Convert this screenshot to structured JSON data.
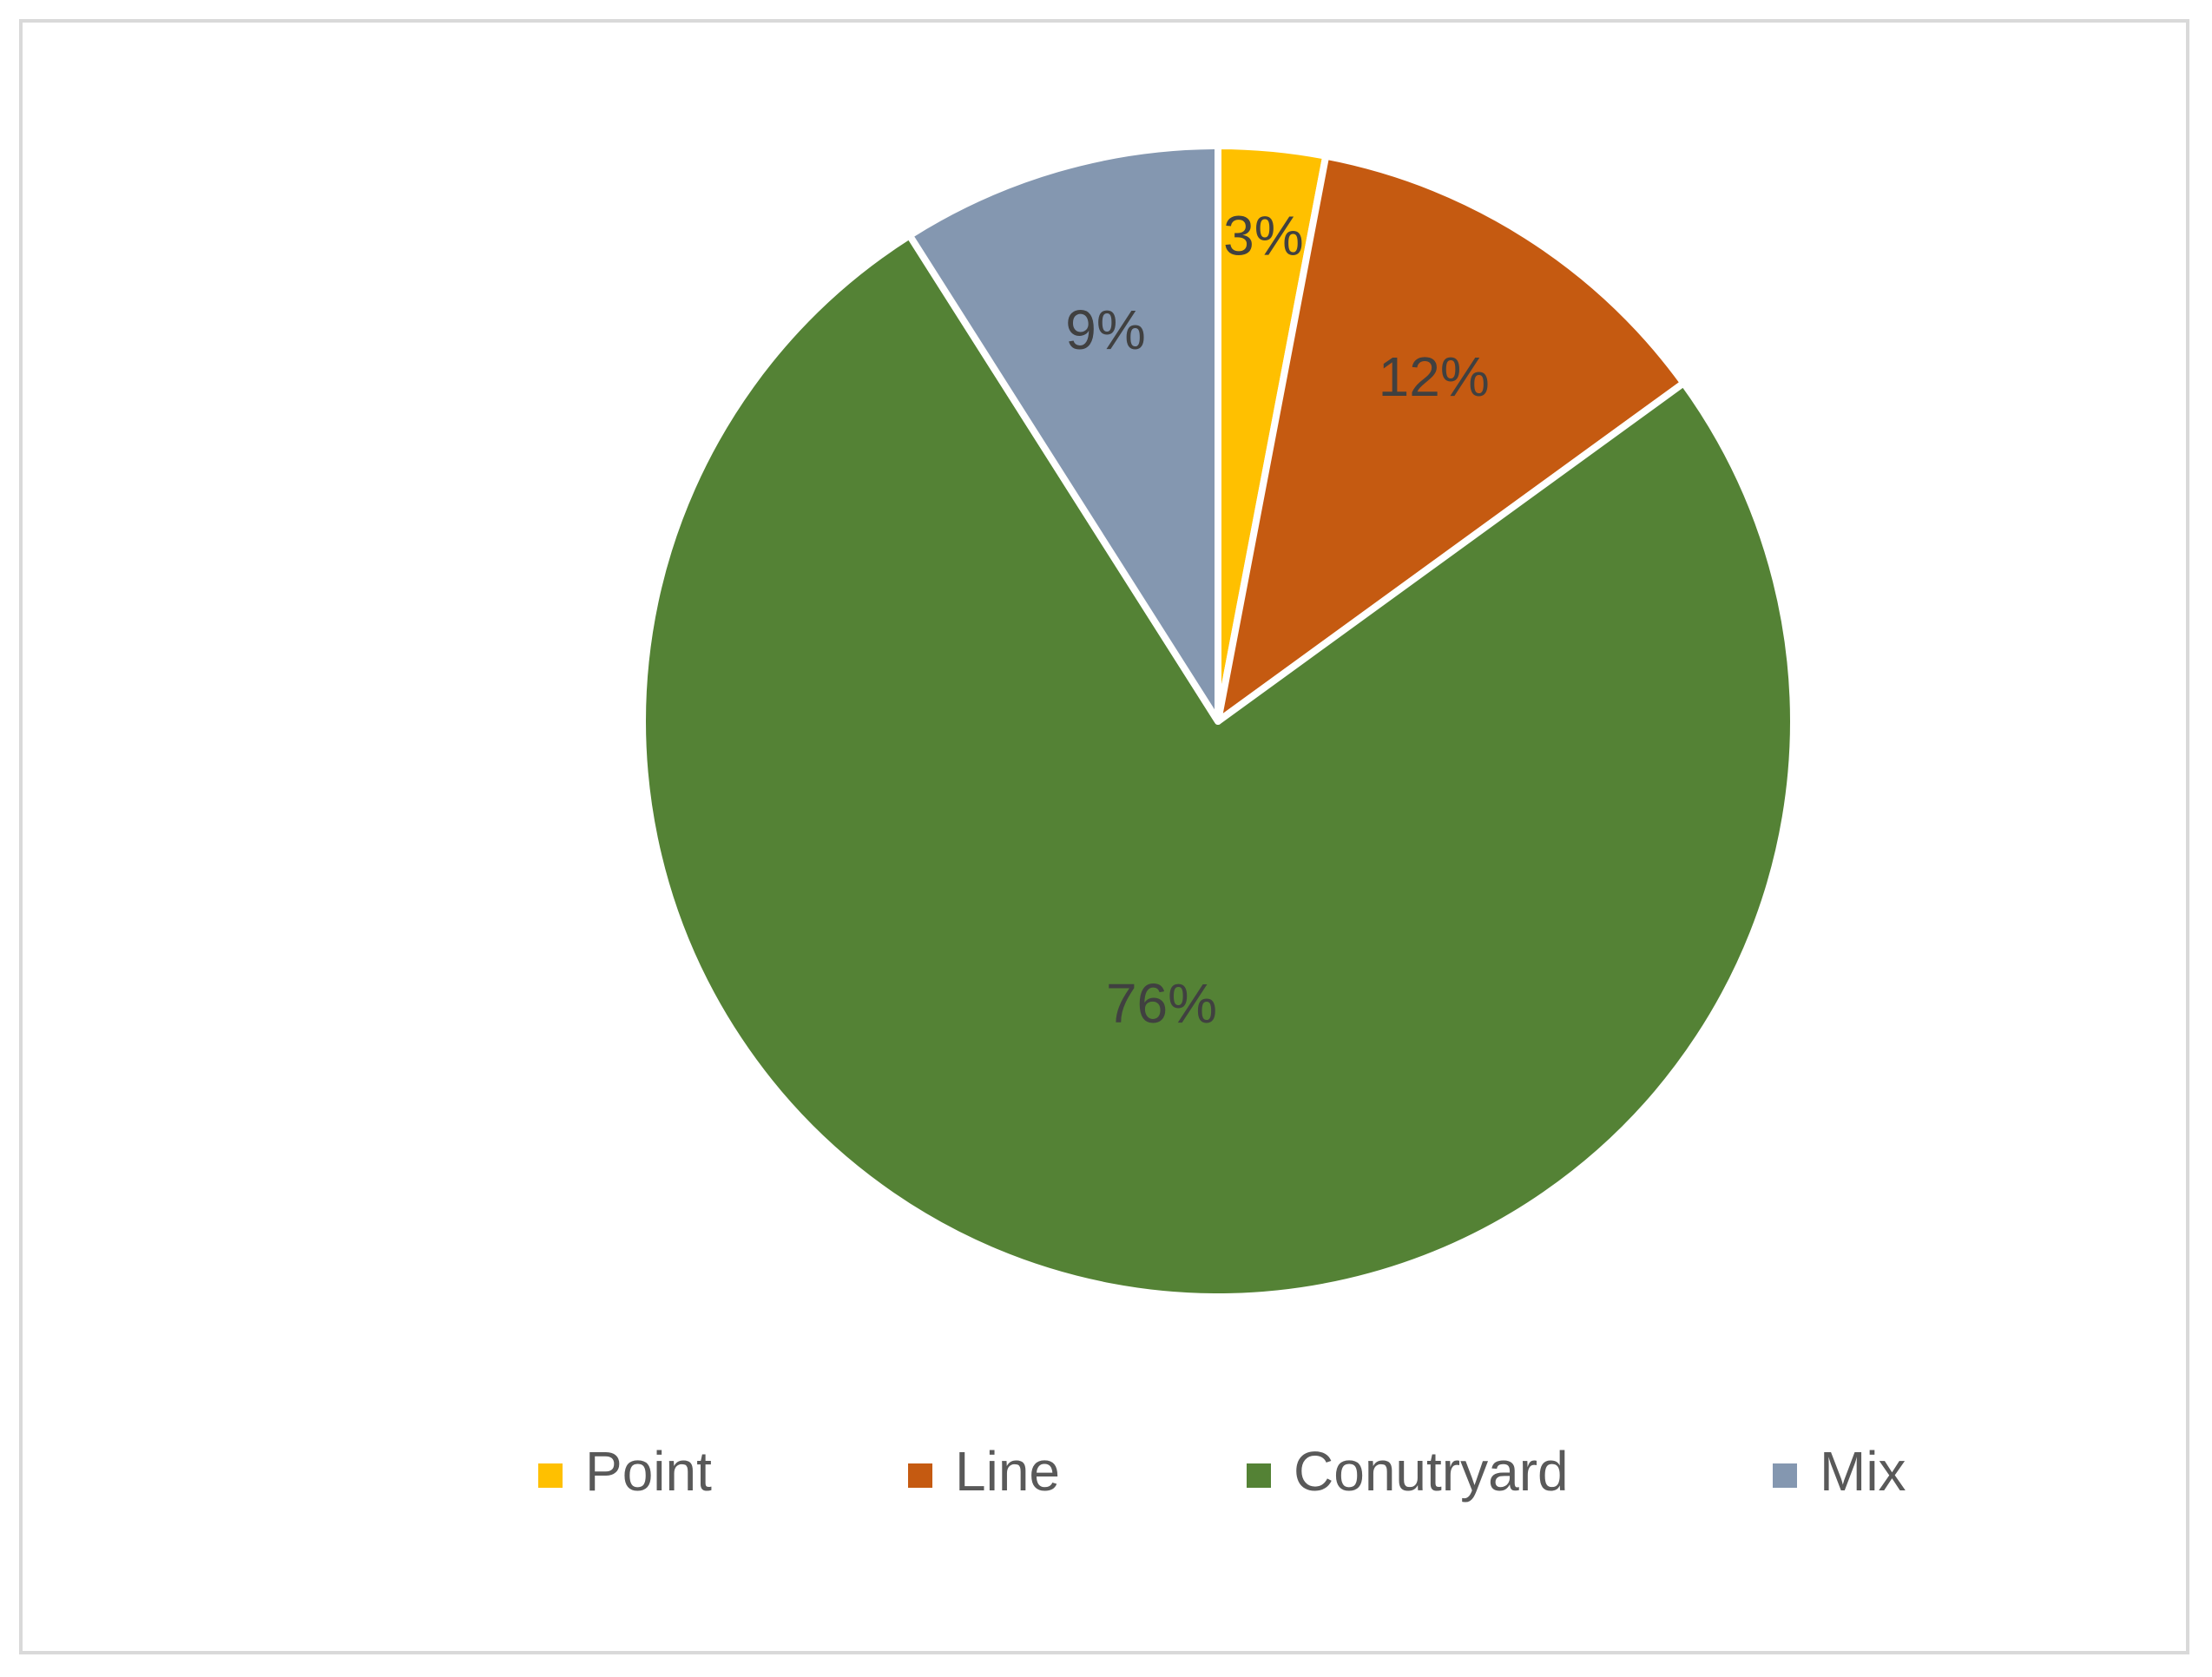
{
  "chart_data": {
    "type": "pie",
    "categories": [
      "Point",
      "Line",
      "Conutryard",
      "Mix"
    ],
    "values": [
      3,
      12,
      76,
      9
    ],
    "data_labels": [
      "3%",
      "12%",
      "76%",
      "9%"
    ],
    "colors": [
      "#FFC000",
      "#C55A11",
      "#548235",
      "#8497B0"
    ],
    "legend_position": "bottom",
    "title": ""
  }
}
